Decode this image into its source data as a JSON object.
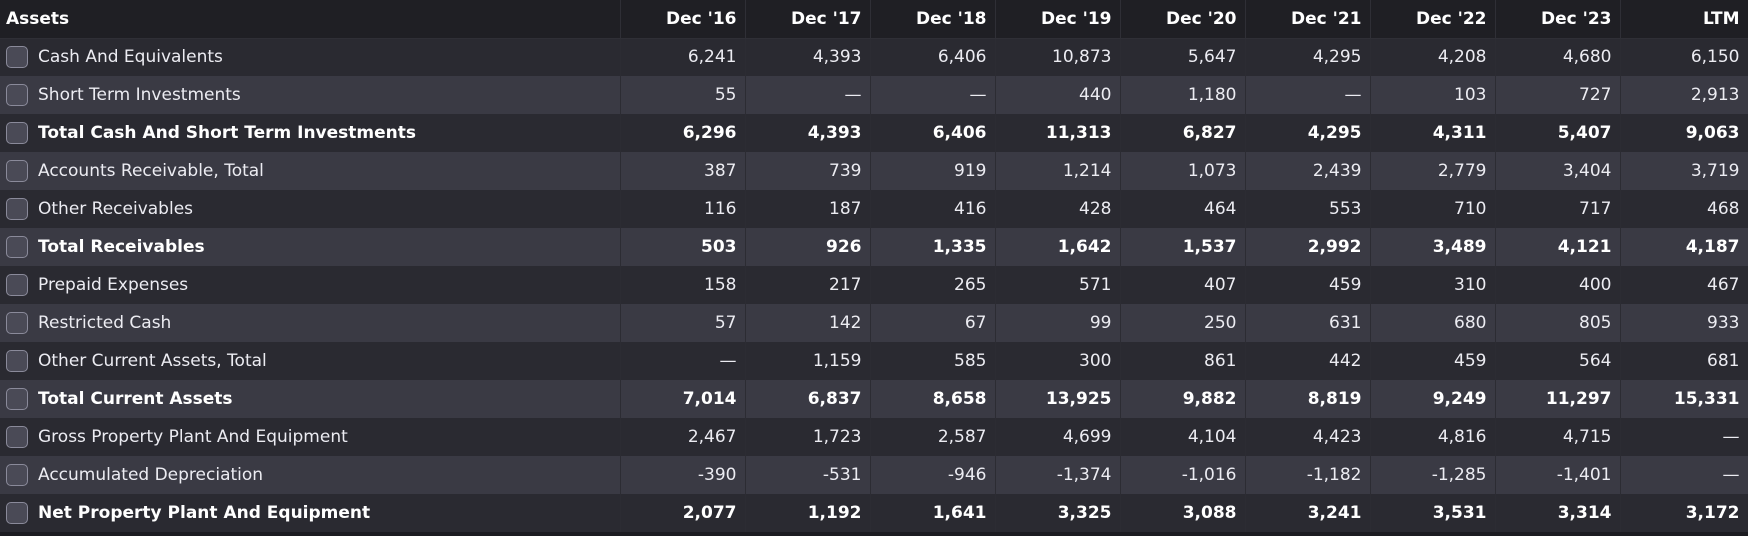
{
  "header": {
    "label": "Assets",
    "columns": [
      "Dec '16",
      "Dec '17",
      "Dec '18",
      "Dec '19",
      "Dec '20",
      "Dec '21",
      "Dec '22",
      "Dec '23",
      "LTM"
    ]
  },
  "rows": [
    {
      "label": "Cash And Equivalents",
      "bold": false,
      "values": [
        "6,241",
        "4,393",
        "6,406",
        "10,873",
        "5,647",
        "4,295",
        "4,208",
        "4,680",
        "6,150"
      ]
    },
    {
      "label": "Short Term Investments",
      "bold": false,
      "values": [
        "55",
        "—",
        "—",
        "440",
        "1,180",
        "—",
        "103",
        "727",
        "2,913"
      ]
    },
    {
      "label": "Total Cash And Short Term Investments",
      "bold": true,
      "values": [
        "6,296",
        "4,393",
        "6,406",
        "11,313",
        "6,827",
        "4,295",
        "4,311",
        "5,407",
        "9,063"
      ]
    },
    {
      "label": "Accounts Receivable, Total",
      "bold": false,
      "values": [
        "387",
        "739",
        "919",
        "1,214",
        "1,073",
        "2,439",
        "2,779",
        "3,404",
        "3,719"
      ]
    },
    {
      "label": "Other Receivables",
      "bold": false,
      "values": [
        "116",
        "187",
        "416",
        "428",
        "464",
        "553",
        "710",
        "717",
        "468"
      ]
    },
    {
      "label": "Total Receivables",
      "bold": true,
      "values": [
        "503",
        "926",
        "1,335",
        "1,642",
        "1,537",
        "2,992",
        "3,489",
        "4,121",
        "4,187"
      ]
    },
    {
      "label": "Prepaid Expenses",
      "bold": false,
      "values": [
        "158",
        "217",
        "265",
        "571",
        "407",
        "459",
        "310",
        "400",
        "467"
      ]
    },
    {
      "label": "Restricted Cash",
      "bold": false,
      "values": [
        "57",
        "142",
        "67",
        "99",
        "250",
        "631",
        "680",
        "805",
        "933"
      ]
    },
    {
      "label": "Other Current Assets, Total",
      "bold": false,
      "values": [
        "—",
        "1,159",
        "585",
        "300",
        "861",
        "442",
        "459",
        "564",
        "681"
      ]
    },
    {
      "label": "Total Current Assets",
      "bold": true,
      "values": [
        "7,014",
        "6,837",
        "8,658",
        "13,925",
        "9,882",
        "8,819",
        "9,249",
        "11,297",
        "15,331"
      ]
    },
    {
      "label": "Gross Property Plant And Equipment",
      "bold": false,
      "values": [
        "2,467",
        "1,723",
        "2,587",
        "4,699",
        "4,104",
        "4,423",
        "4,816",
        "4,715",
        "—"
      ]
    },
    {
      "label": "Accumulated Depreciation",
      "bold": false,
      "values": [
        "-390",
        "-531",
        "-946",
        "-1,374",
        "-1,016",
        "-1,182",
        "-1,285",
        "-1,401",
        "—"
      ]
    },
    {
      "label": "Net Property Plant And Equipment",
      "bold": true,
      "values": [
        "2,077",
        "1,192",
        "1,641",
        "3,325",
        "3,088",
        "3,241",
        "3,531",
        "3,314",
        "3,172"
      ]
    }
  ]
}
